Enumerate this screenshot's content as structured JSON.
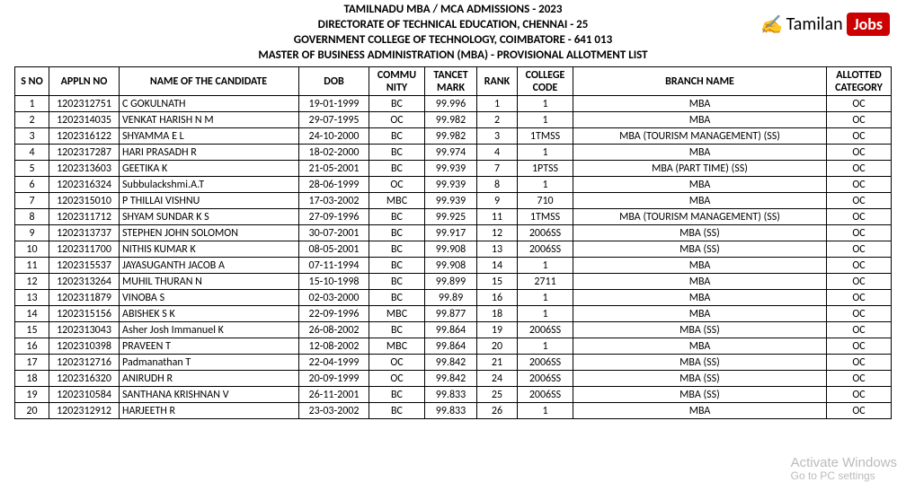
{
  "header": {
    "line1": "TAMILNADU MBA / MCA ADMISSIONS - 2023",
    "line2": "DIRECTORATE OF TECHNICAL EDUCATION, CHENNAI - 25",
    "line3": "GOVERNMENT COLLEGE OF TECHNOLOGY, COIMBATORE - 641 013",
    "line4": "MASTER OF BUSINESS ADMINISTRATION (MBA) - PROVISIONAL ALLOTMENT LIST"
  },
  "logo": {
    "brand": "Tamilan",
    "suffix": "Jobs"
  },
  "columns": {
    "sno": "S NO",
    "appln": "APPLN NO",
    "name": "NAME OF THE CANDIDATE",
    "dob": "DOB",
    "comm": "COMMU\nNITY",
    "mark": "TANCET\nMARK",
    "rank": "RANK",
    "code": "COLLEGE\nCODE",
    "branch": "BRANCH NAME",
    "cat": "ALLOTTED\nCATEGORY"
  },
  "rows": [
    {
      "sno": "1",
      "appln": "1202312751",
      "name": "C GOKULNATH",
      "dob": "19-01-1999",
      "comm": "BC",
      "mark": "99.996",
      "rank": "1",
      "code": "1",
      "branch": "MBA",
      "cat": "OC"
    },
    {
      "sno": "2",
      "appln": "1202314035",
      "name": "VENKAT HARISH N M",
      "dob": "29-07-1995",
      "comm": "OC",
      "mark": "99.982",
      "rank": "2",
      "code": "1",
      "branch": "MBA",
      "cat": "OC"
    },
    {
      "sno": "3",
      "appln": "1202316122",
      "name": "SHYAMMA E L",
      "dob": "24-10-2000",
      "comm": "BC",
      "mark": "99.982",
      "rank": "3",
      "code": "1TMSS",
      "branch": "MBA (TOURISM MANAGEMENT) (SS)",
      "cat": "OC"
    },
    {
      "sno": "4",
      "appln": "1202317287",
      "name": "HARI PRASADH R",
      "dob": "18-02-2000",
      "comm": "BC",
      "mark": "99.974",
      "rank": "4",
      "code": "1",
      "branch": "MBA",
      "cat": "OC"
    },
    {
      "sno": "5",
      "appln": "1202313603",
      "name": "GEETIKA K",
      "dob": "21-05-2001",
      "comm": "BC",
      "mark": "99.939",
      "rank": "7",
      "code": "1PTSS",
      "branch": "MBA (PART TIME) (SS)",
      "cat": "OC"
    },
    {
      "sno": "6",
      "appln": "1202316324",
      "name": "Subbulackshmi.A.T",
      "dob": "28-06-1999",
      "comm": "OC",
      "mark": "99.939",
      "rank": "8",
      "code": "1",
      "branch": "MBA",
      "cat": "OC"
    },
    {
      "sno": "7",
      "appln": "1202315010",
      "name": "P THILLAI VISHNU",
      "dob": "17-03-2002",
      "comm": "MBC",
      "mark": "99.939",
      "rank": "9",
      "code": "710",
      "branch": "MBA",
      "cat": "OC"
    },
    {
      "sno": "8",
      "appln": "1202311712",
      "name": "SHYAM SUNDAR K S",
      "dob": "27-09-1996",
      "comm": "BC",
      "mark": "99.925",
      "rank": "11",
      "code": "1TMSS",
      "branch": "MBA (TOURISM MANAGEMENT) (SS)",
      "cat": "OC"
    },
    {
      "sno": "9",
      "appln": "1202313737",
      "name": "STEPHEN JOHN SOLOMON",
      "dob": "30-07-2001",
      "comm": "BC",
      "mark": "99.917",
      "rank": "12",
      "code": "2006SS",
      "branch": "MBA (SS)",
      "cat": "OC"
    },
    {
      "sno": "10",
      "appln": "1202311700",
      "name": "NITHIS KUMAR K",
      "dob": "08-05-2001",
      "comm": "BC",
      "mark": "99.908",
      "rank": "13",
      "code": "2006SS",
      "branch": "MBA (SS)",
      "cat": "OC"
    },
    {
      "sno": "11",
      "appln": "1202315537",
      "name": "JAYASUGANTH JACOB A",
      "dob": "07-11-1994",
      "comm": "BC",
      "mark": "99.908",
      "rank": "14",
      "code": "1",
      "branch": "MBA",
      "cat": "OC"
    },
    {
      "sno": "12",
      "appln": "1202313264",
      "name": "MUHIL THURAN N",
      "dob": "15-10-1998",
      "comm": "BC",
      "mark": "99.899",
      "rank": "15",
      "code": "2711",
      "branch": "MBA",
      "cat": "OC"
    },
    {
      "sno": "13",
      "appln": "1202311879",
      "name": "VINOBA S",
      "dob": "02-03-2000",
      "comm": "BC",
      "mark": "99.89",
      "rank": "16",
      "code": "1",
      "branch": "MBA",
      "cat": "OC"
    },
    {
      "sno": "14",
      "appln": "1202315156",
      "name": "ABISHEK S K",
      "dob": "22-09-1996",
      "comm": "MBC",
      "mark": "99.877",
      "rank": "18",
      "code": "1",
      "branch": "MBA",
      "cat": "OC"
    },
    {
      "sno": "15",
      "appln": "1202313043",
      "name": "Asher Josh Immanuel K",
      "dob": "26-08-2002",
      "comm": "BC",
      "mark": "99.864",
      "rank": "19",
      "code": "2006SS",
      "branch": "MBA (SS)",
      "cat": "OC"
    },
    {
      "sno": "16",
      "appln": "1202310398",
      "name": "PRAVEEN T",
      "dob": "12-08-2002",
      "comm": "MBC",
      "mark": "99.864",
      "rank": "20",
      "code": "1",
      "branch": "MBA",
      "cat": "OC"
    },
    {
      "sno": "17",
      "appln": "1202312716",
      "name": "Padmanathan T",
      "dob": "22-04-1999",
      "comm": "OC",
      "mark": "99.842",
      "rank": "21",
      "code": "2006SS",
      "branch": "MBA (SS)",
      "cat": "OC"
    },
    {
      "sno": "18",
      "appln": "1202316320",
      "name": "ANIRUDH R",
      "dob": "20-09-1999",
      "comm": "OC",
      "mark": "99.842",
      "rank": "24",
      "code": "2006SS",
      "branch": "MBA (SS)",
      "cat": "OC"
    },
    {
      "sno": "19",
      "appln": "1202310584",
      "name": "SANTHANA KRISHNAN V",
      "dob": "26-11-2001",
      "comm": "BC",
      "mark": "99.833",
      "rank": "25",
      "code": "2006SS",
      "branch": "MBA (SS)",
      "cat": "OC"
    },
    {
      "sno": "20",
      "appln": "1202312912",
      "name": "HARJEETH R",
      "dob": "23-03-2002",
      "comm": "BC",
      "mark": "99.833",
      "rank": "26",
      "code": "1",
      "branch": "MBA",
      "cat": "OC"
    }
  ],
  "watermark": {
    "line1": "Activate Windows",
    "line2": "Go to PC settings"
  }
}
